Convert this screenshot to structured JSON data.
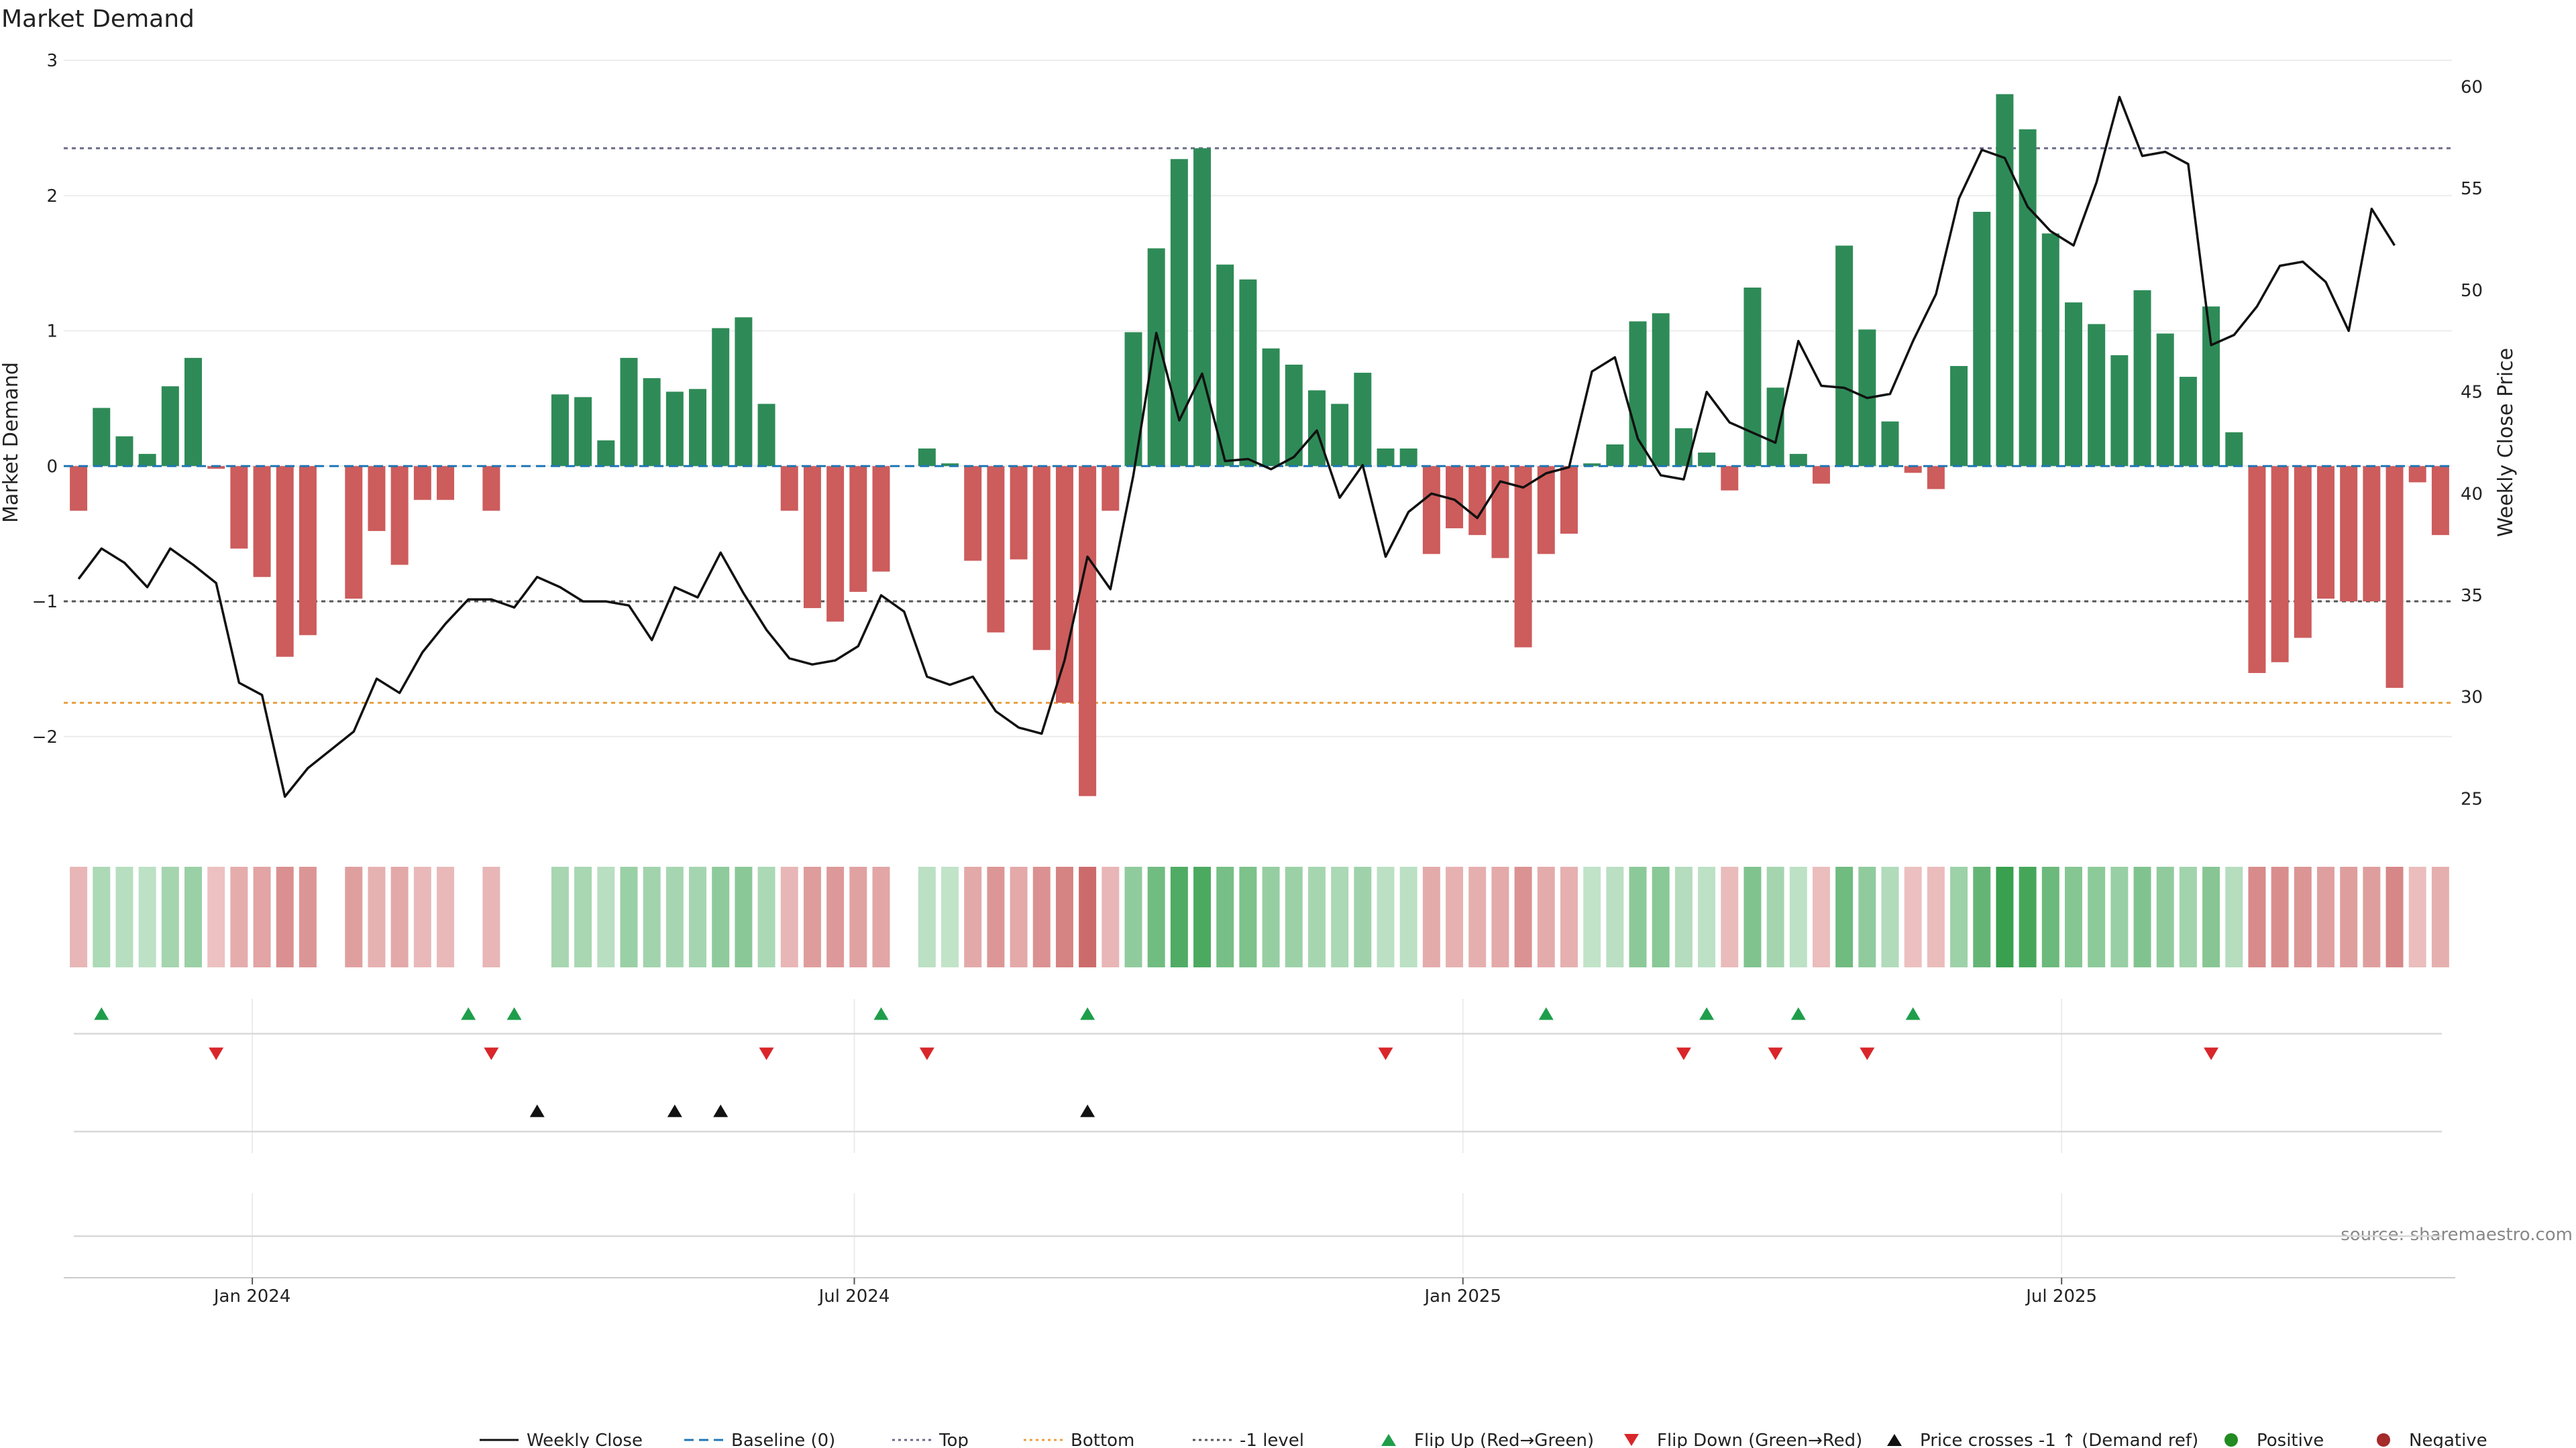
{
  "chart_data": {
    "type": "bar",
    "title": "Market Demand",
    "ylabel": "Market Demand",
    "y2label": "Weekly Close Price",
    "ylim": [
      -2.7,
      3.0
    ],
    "y2lim": [
      23.4,
      61.3
    ],
    "yticks": [
      3,
      2,
      1,
      0,
      -1,
      -2
    ],
    "ytick_labels": [
      "3",
      "2",
      "1",
      "0",
      "−1",
      "−2"
    ],
    "y2ticks": [
      60,
      55,
      50,
      45,
      40,
      35,
      30,
      25
    ],
    "x_start": "2023-11-06",
    "x_end": "2025-10-27",
    "x_ticks": [
      {
        "date": "2024-01-01",
        "label": "Jan 2024"
      },
      {
        "date": "2024-07-01",
        "label": "Jul 2024"
      },
      {
        "date": "2025-01-01",
        "label": "Jan 2025"
      },
      {
        "date": "2025-07-01",
        "label": "Jul 2025"
      }
    ],
    "demand": [
      -0.33,
      0.43,
      0.22,
      0.09,
      0.59,
      0.8,
      -0.02,
      -0.61,
      -0.82,
      -1.41,
      -1.25,
      0,
      -0.98,
      -0.48,
      -0.73,
      -0.25,
      -0.25,
      0,
      -0.33,
      0,
      0,
      0.53,
      0.51,
      0.19,
      0.8,
      0.65,
      0.55,
      0.57,
      1.02,
      1.1,
      0.46,
      -0.33,
      -1.05,
      -1.15,
      -0.93,
      -0.78,
      0,
      0.13,
      0.02,
      -0.7,
      -1.23,
      -0.69,
      -1.36,
      -1.75,
      -2.44,
      -0.33,
      0.99,
      1.61,
      2.27,
      2.35,
      1.49,
      1.38,
      0.87,
      0.75,
      0.56,
      0.46,
      0.69,
      0.13,
      0.13,
      -0.65,
      -0.46,
      -0.51,
      -0.68,
      -1.34,
      -0.65,
      -0.5,
      0.02,
      0.16,
      1.07,
      1.13,
      0.28,
      0.1,
      -0.18,
      1.32,
      0.58,
      0.09,
      -0.13,
      1.63,
      1.01,
      0.33,
      -0.05,
      -0.17,
      0.74,
      1.88,
      2.75,
      2.49,
      1.72,
      1.21,
      1.05,
      0.82,
      1.3,
      0.98,
      0.66,
      1.18,
      0.25,
      -1.53,
      -1.45,
      -1.27,
      -0.98,
      -1.0,
      -1.0,
      -1.64,
      -0.12,
      -0.51
    ],
    "price": [
      35.8,
      37.3,
      36.6,
      35.4,
      37.3,
      36.5,
      35.6,
      30.7,
      30.1,
      25.1,
      26.5,
      27.4,
      28.3,
      30.9,
      30.2,
      32.2,
      33.6,
      34.8,
      34.8,
      34.4,
      35.9,
      35.4,
      34.7,
      34.7,
      34.5,
      32.8,
      35.4,
      34.9,
      37.1,
      35.1,
      33.3,
      31.9,
      31.6,
      31.8,
      32.5,
      35.0,
      34.2,
      31.0,
      30.6,
      31.0,
      29.3,
      28.5,
      28.2,
      31.8,
      36.9,
      35.3,
      40.9,
      47.9,
      43.6,
      45.9,
      41.6,
      41.7,
      41.2,
      41.8,
      43.1,
      39.8,
      41.4,
      36.9,
      39.1,
      40.0,
      39.7,
      38.8,
      40.6,
      40.3,
      41.0,
      41.3,
      46.0,
      46.7,
      42.7,
      40.9,
      40.7,
      45.0,
      43.5,
      43.0,
      42.5,
      47.5,
      45.3,
      45.2,
      44.7,
      44.9,
      47.5,
      49.8,
      54.5,
      56.9,
      56.5,
      54.1,
      52.9,
      52.2,
      55.3,
      59.5,
      56.6,
      56.8,
      56.2,
      47.3,
      47.8,
      49.2,
      51.2,
      51.4,
      50.4,
      48.0,
      54.0,
      52.2
    ],
    "reference_lines": [
      {
        "name": "Baseline (0)",
        "value": 0,
        "color": "#1f77b4",
        "style": "dashed"
      },
      {
        "name": "Top",
        "value": 2.35,
        "color": "#6a6a88",
        "style": "dotted"
      },
      {
        "name": "Bottom",
        "value": -1.75,
        "color": "#e8a040",
        "style": "dotted"
      },
      {
        "name": "-1 level",
        "value": -1.0,
        "color": "#555555",
        "style": "dotted"
      }
    ],
    "flip_up_weeks": [
      1,
      17,
      19,
      35,
      44,
      64,
      71,
      75,
      80
    ],
    "flip_down_weeks": [
      6,
      18,
      30,
      37,
      57,
      70,
      74,
      78,
      93
    ],
    "price_cross_weeks": [
      20,
      26,
      28,
      44
    ],
    "colors": {
      "positive": "#2e8b57",
      "negative": "#cd5c5c",
      "price_line": "#111111",
      "flip_up": "#1e9e4a",
      "flip_down": "#d9262a",
      "cross": "#111111",
      "legend_positive": "#228b22",
      "legend_negative": "#a52a2a"
    },
    "legend": [
      {
        "label": "Weekly Close",
        "kind": "line",
        "color": "#111111",
        "dash": ""
      },
      {
        "label": "Baseline (0)",
        "kind": "line",
        "color": "#1f77b4",
        "dash": "14,8"
      },
      {
        "label": "Top",
        "kind": "line",
        "color": "#6a6a88",
        "dash": "4,5"
      },
      {
        "label": "Bottom",
        "kind": "line",
        "color": "#e8a040",
        "dash": "4,5"
      },
      {
        "label": "-1 level",
        "kind": "line",
        "color": "#555555",
        "dash": "4,5"
      },
      {
        "label": "Flip Up (Red→Green)",
        "kind": "tri-up",
        "color": "#1e9e4a"
      },
      {
        "label": "Flip Down (Green→Red)",
        "kind": "tri-down",
        "color": "#d9262a"
      },
      {
        "label": "Price crosses -1 ↑ (Demand ref)",
        "kind": "tri-up",
        "color": "#111111"
      },
      {
        "label": "Positive",
        "kind": "dot",
        "color": "#228b22"
      },
      {
        "label": "Negative",
        "kind": "dot",
        "color": "#a52a2a"
      }
    ],
    "source": "source: sharemaestro.com"
  }
}
